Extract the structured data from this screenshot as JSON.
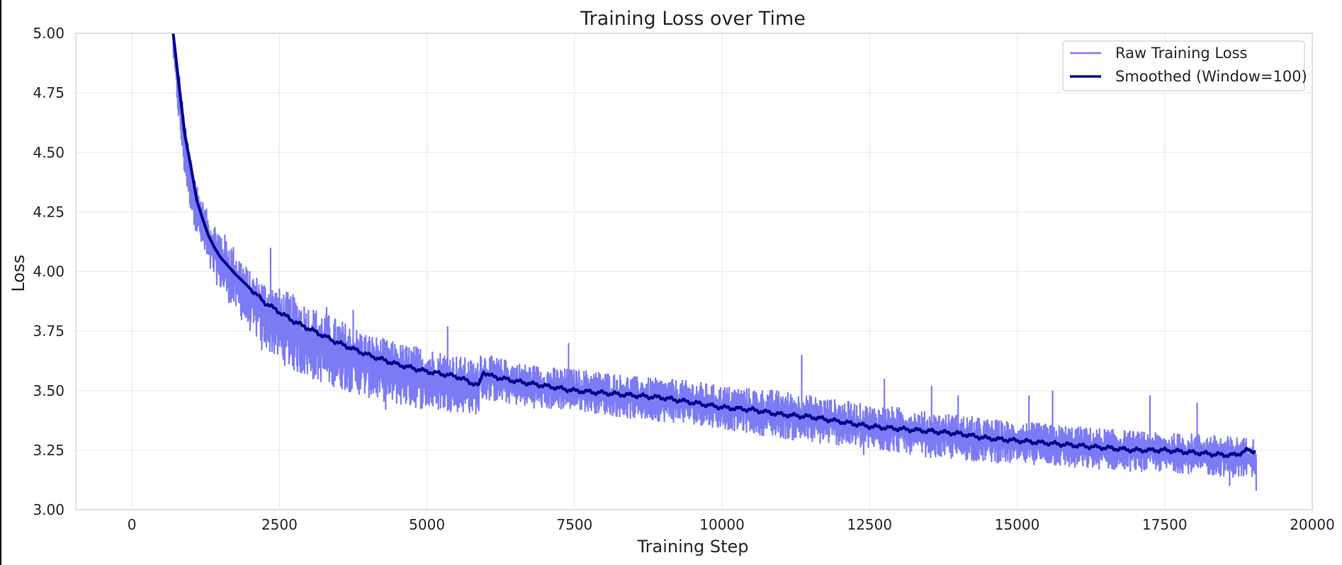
{
  "chart_data": {
    "type": "line",
    "title": "Training Loss over Time",
    "xlabel": "Training Step",
    "ylabel": "Loss",
    "xlim": [
      -950,
      20000
    ],
    "ylim": [
      3.0,
      5.0
    ],
    "xticks": [
      0,
      2500,
      5000,
      7500,
      10000,
      12500,
      15000,
      17500,
      20000
    ],
    "yticks": [
      3.0,
      3.25,
      3.5,
      3.75,
      4.0,
      4.25,
      4.5,
      4.75,
      5.0
    ],
    "xtick_labels": [
      "0",
      "2500",
      "5000",
      "7500",
      "10000",
      "12500",
      "15000",
      "17500",
      "20000"
    ],
    "ytick_labels": [
      "3.00",
      "3.25",
      "3.50",
      "3.75",
      "4.00",
      "4.25",
      "4.50",
      "4.75",
      "5.00"
    ],
    "grid": true,
    "legend_position": "top-right",
    "series": [
      {
        "name": "Raw Training Loss",
        "color": "#7b7bf5",
        "style": "band",
        "x": [
          700,
          800,
          900,
          1000,
          1100,
          1200,
          1300,
          1500,
          1750,
          2000,
          2250,
          2500,
          2750,
          3000,
          3500,
          4000,
          4500,
          5000,
          5500,
          5880,
          5900,
          6000,
          6500,
          7000,
          7500,
          8000,
          8500,
          9000,
          9500,
          10000,
          10500,
          11000,
          11500,
          12000,
          12500,
          13000,
          13500,
          14000,
          14500,
          15000,
          15500,
          16000,
          16500,
          17000,
          17500,
          18000,
          18500,
          19050
        ],
        "upper": [
          5.0,
          4.85,
          4.62,
          4.5,
          4.38,
          4.3,
          4.24,
          4.18,
          4.1,
          4.0,
          3.96,
          3.93,
          3.9,
          3.86,
          3.8,
          3.74,
          3.7,
          3.68,
          3.65,
          3.62,
          3.68,
          3.65,
          3.62,
          3.6,
          3.59,
          3.58,
          3.56,
          3.55,
          3.54,
          3.52,
          3.51,
          3.5,
          3.48,
          3.46,
          3.44,
          3.43,
          3.41,
          3.4,
          3.38,
          3.37,
          3.36,
          3.35,
          3.34,
          3.33,
          3.32,
          3.32,
          3.31,
          3.3
        ],
        "lower": [
          4.9,
          4.6,
          4.38,
          4.25,
          4.15,
          4.08,
          4.0,
          3.92,
          3.83,
          3.75,
          3.68,
          3.62,
          3.58,
          3.55,
          3.51,
          3.47,
          3.44,
          3.42,
          3.41,
          3.4,
          3.46,
          3.46,
          3.44,
          3.42,
          3.42,
          3.4,
          3.38,
          3.37,
          3.36,
          3.34,
          3.32,
          3.3,
          3.28,
          3.27,
          3.25,
          3.24,
          3.22,
          3.21,
          3.2,
          3.19,
          3.19,
          3.17,
          3.17,
          3.16,
          3.16,
          3.15,
          3.14,
          3.13
        ],
        "spikes": [
          {
            "x": 2350,
            "y": 4.1
          },
          {
            "x": 3300,
            "y": 3.85
          },
          {
            "x": 3750,
            "y": 3.84
          },
          {
            "x": 5350,
            "y": 3.77
          },
          {
            "x": 4300,
            "y": 3.42
          },
          {
            "x": 2200,
            "y": 3.67
          },
          {
            "x": 7400,
            "y": 3.7
          },
          {
            "x": 11350,
            "y": 3.65
          },
          {
            "x": 12750,
            "y": 3.55
          },
          {
            "x": 13550,
            "y": 3.52
          },
          {
            "x": 15600,
            "y": 3.5
          },
          {
            "x": 14000,
            "y": 3.48
          },
          {
            "x": 17250,
            "y": 3.48
          },
          {
            "x": 18600,
            "y": 3.1
          },
          {
            "x": 19050,
            "y": 3.08
          },
          {
            "x": 12400,
            "y": 3.23
          },
          {
            "x": 15200,
            "y": 3.48
          },
          {
            "x": 18050,
            "y": 3.45
          }
        ]
      },
      {
        "name": "Smoothed (Window=100)",
        "color": "#00008b",
        "style": "line",
        "x": [
          700,
          800,
          900,
          1000,
          1100,
          1200,
          1300,
          1400,
          1500,
          1750,
          2000,
          2250,
          2500,
          2750,
          3000,
          3500,
          4000,
          4500,
          5000,
          5500,
          5880,
          5950,
          6100,
          6500,
          7000,
          7500,
          8000,
          8500,
          9000,
          9500,
          10000,
          10500,
          11000,
          11500,
          12000,
          12500,
          13000,
          13500,
          14000,
          14500,
          15000,
          15500,
          16000,
          16500,
          17000,
          17500,
          18000,
          18500,
          18700,
          18900,
          19050
        ],
        "y": [
          5.0,
          4.78,
          4.57,
          4.44,
          4.3,
          4.22,
          4.15,
          4.1,
          4.06,
          3.99,
          3.93,
          3.87,
          3.83,
          3.79,
          3.76,
          3.7,
          3.65,
          3.61,
          3.58,
          3.56,
          3.52,
          3.58,
          3.56,
          3.54,
          3.52,
          3.5,
          3.49,
          3.48,
          3.47,
          3.45,
          3.43,
          3.42,
          3.4,
          3.39,
          3.37,
          3.35,
          3.34,
          3.33,
          3.32,
          3.3,
          3.29,
          3.28,
          3.27,
          3.26,
          3.25,
          3.25,
          3.24,
          3.23,
          3.23,
          3.25,
          3.245
        ]
      }
    ]
  }
}
